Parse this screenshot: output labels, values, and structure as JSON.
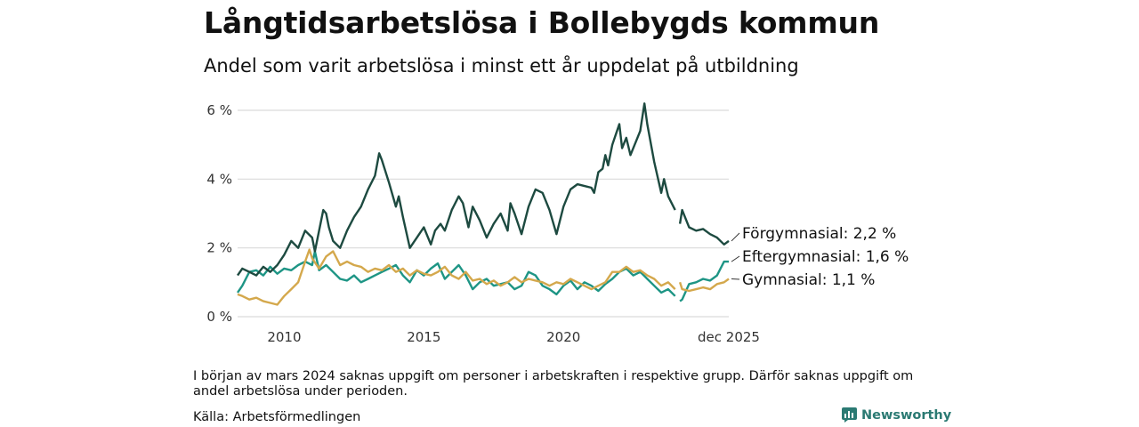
{
  "title": "Långtidsarbetslösa i Bollebygds kommun",
  "subtitle": "Andel som varit arbetslösa i minst ett år uppdelat på utbildning",
  "note": "I början av mars 2024 saknas uppgift om personer i arbetskraften i respektive grupp. Därför saknas uppgift om andel arbetslösa under perioden.",
  "source": "Källa: Arbetsförmedlingen",
  "brand": "Newsworthy",
  "colors": {
    "forgymnasial": "#1d4a40",
    "eftergymnasial": "#1e9585",
    "gymnasial": "#d4a84c",
    "grid": "#d9d9d9",
    "brand": "#2b7a73"
  },
  "chart_data": {
    "type": "line",
    "x_unit": "year",
    "x_start": 2008.33,
    "x_end": 2025.92,
    "gap": [
      2024.0,
      2024.17
    ],
    "ylim": [
      0,
      6.2
    ],
    "yticks": [
      0,
      2,
      4,
      6
    ],
    "ytick_labels": [
      "0 %",
      "2 %",
      "4 %",
      "6 %"
    ],
    "xticks": [
      2010,
      2015,
      2020,
      2025.92
    ],
    "xtick_labels": [
      "2010",
      "2015",
      "2020",
      "dec 2025"
    ],
    "grid": true,
    "series": [
      {
        "name": "Förgymnasial",
        "label": "Förgymnasial: 2,2 %",
        "color_key": "forgymnasial",
        "points": [
          [
            2008.33,
            1.2
          ],
          [
            2008.5,
            1.4
          ],
          [
            2008.75,
            1.3
          ],
          [
            2009.0,
            1.2
          ],
          [
            2009.25,
            1.45
          ],
          [
            2009.5,
            1.3
          ],
          [
            2009.75,
            1.5
          ],
          [
            2010.0,
            1.8
          ],
          [
            2010.25,
            2.2
          ],
          [
            2010.5,
            2.0
          ],
          [
            2010.75,
            2.5
          ],
          [
            2011.0,
            2.3
          ],
          [
            2011.1,
            1.9
          ],
          [
            2011.25,
            2.5
          ],
          [
            2011.4,
            3.1
          ],
          [
            2011.5,
            3.0
          ],
          [
            2011.6,
            2.6
          ],
          [
            2011.75,
            2.2
          ],
          [
            2012.0,
            2.0
          ],
          [
            2012.25,
            2.5
          ],
          [
            2012.5,
            2.9
          ],
          [
            2012.75,
            3.2
          ],
          [
            2013.0,
            3.7
          ],
          [
            2013.25,
            4.1
          ],
          [
            2013.4,
            4.75
          ],
          [
            2013.5,
            4.55
          ],
          [
            2013.75,
            3.9
          ],
          [
            2014.0,
            3.2
          ],
          [
            2014.1,
            3.5
          ],
          [
            2014.25,
            2.9
          ],
          [
            2014.5,
            2.0
          ],
          [
            2014.75,
            2.3
          ],
          [
            2015.0,
            2.6
          ],
          [
            2015.25,
            2.1
          ],
          [
            2015.4,
            2.5
          ],
          [
            2015.6,
            2.7
          ],
          [
            2015.75,
            2.5
          ],
          [
            2016.0,
            3.1
          ],
          [
            2016.25,
            3.5
          ],
          [
            2016.4,
            3.3
          ],
          [
            2016.6,
            2.6
          ],
          [
            2016.75,
            3.2
          ],
          [
            2017.0,
            2.8
          ],
          [
            2017.25,
            2.3
          ],
          [
            2017.5,
            2.7
          ],
          [
            2017.75,
            3.0
          ],
          [
            2018.0,
            2.5
          ],
          [
            2018.1,
            3.3
          ],
          [
            2018.25,
            3.0
          ],
          [
            2018.5,
            2.4
          ],
          [
            2018.75,
            3.2
          ],
          [
            2019.0,
            3.7
          ],
          [
            2019.25,
            3.6
          ],
          [
            2019.5,
            3.1
          ],
          [
            2019.75,
            2.4
          ],
          [
            2020.0,
            3.2
          ],
          [
            2020.25,
            3.7
          ],
          [
            2020.5,
            3.85
          ],
          [
            2020.75,
            3.8
          ],
          [
            2021.0,
            3.75
          ],
          [
            2021.1,
            3.6
          ],
          [
            2021.25,
            4.2
          ],
          [
            2021.4,
            4.3
          ],
          [
            2021.5,
            4.7
          ],
          [
            2021.6,
            4.4
          ],
          [
            2021.75,
            5.0
          ],
          [
            2022.0,
            5.6
          ],
          [
            2022.1,
            4.9
          ],
          [
            2022.25,
            5.2
          ],
          [
            2022.4,
            4.7
          ],
          [
            2022.6,
            5.1
          ],
          [
            2022.75,
            5.4
          ],
          [
            2022.9,
            6.2
          ],
          [
            2023.0,
            5.6
          ],
          [
            2023.25,
            4.5
          ],
          [
            2023.5,
            3.6
          ],
          [
            2023.6,
            4.0
          ],
          [
            2023.75,
            3.5
          ],
          [
            2024.0,
            3.1
          ],
          [
            2024.17,
            2.7
          ],
          [
            2024.25,
            3.1
          ],
          [
            2024.5,
            2.6
          ],
          [
            2024.75,
            2.5
          ],
          [
            2025.0,
            2.55
          ],
          [
            2025.25,
            2.4
          ],
          [
            2025.5,
            2.3
          ],
          [
            2025.75,
            2.1
          ],
          [
            2025.92,
            2.2
          ]
        ]
      },
      {
        "name": "Eftergymnasial",
        "label": "Eftergymnasial: 1,6 %",
        "color_key": "eftergymnasial",
        "points": [
          [
            2008.33,
            0.7
          ],
          [
            2008.5,
            0.9
          ],
          [
            2008.75,
            1.3
          ],
          [
            2009.0,
            1.35
          ],
          [
            2009.25,
            1.2
          ],
          [
            2009.5,
            1.45
          ],
          [
            2009.75,
            1.25
          ],
          [
            2010.0,
            1.4
          ],
          [
            2010.25,
            1.35
          ],
          [
            2010.5,
            1.5
          ],
          [
            2010.75,
            1.6
          ],
          [
            2011.0,
            1.5
          ],
          [
            2011.1,
            1.9
          ],
          [
            2011.25,
            1.35
          ],
          [
            2011.5,
            1.5
          ],
          [
            2011.75,
            1.3
          ],
          [
            2012.0,
            1.1
          ],
          [
            2012.25,
            1.05
          ],
          [
            2012.5,
            1.2
          ],
          [
            2012.75,
            1.0
          ],
          [
            2013.0,
            1.1
          ],
          [
            2013.25,
            1.2
          ],
          [
            2013.5,
            1.3
          ],
          [
            2013.75,
            1.4
          ],
          [
            2014.0,
            1.5
          ],
          [
            2014.25,
            1.2
          ],
          [
            2014.5,
            1.0
          ],
          [
            2014.75,
            1.35
          ],
          [
            2015.0,
            1.2
          ],
          [
            2015.25,
            1.4
          ],
          [
            2015.5,
            1.55
          ],
          [
            2015.75,
            1.1
          ],
          [
            2016.0,
            1.3
          ],
          [
            2016.25,
            1.5
          ],
          [
            2016.5,
            1.2
          ],
          [
            2016.75,
            0.8
          ],
          [
            2017.0,
            1.0
          ],
          [
            2017.25,
            1.1
          ],
          [
            2017.5,
            0.9
          ],
          [
            2017.75,
            0.95
          ],
          [
            2018.0,
            1.0
          ],
          [
            2018.25,
            0.8
          ],
          [
            2018.5,
            0.9
          ],
          [
            2018.75,
            1.3
          ],
          [
            2019.0,
            1.2
          ],
          [
            2019.25,
            0.9
          ],
          [
            2019.5,
            0.8
          ],
          [
            2019.75,
            0.65
          ],
          [
            2020.0,
            0.9
          ],
          [
            2020.25,
            1.05
          ],
          [
            2020.5,
            0.8
          ],
          [
            2020.75,
            1.0
          ],
          [
            2021.0,
            0.9
          ],
          [
            2021.25,
            0.75
          ],
          [
            2021.5,
            0.95
          ],
          [
            2021.75,
            1.1
          ],
          [
            2022.0,
            1.3
          ],
          [
            2022.25,
            1.4
          ],
          [
            2022.5,
            1.2
          ],
          [
            2022.75,
            1.3
          ],
          [
            2023.0,
            1.1
          ],
          [
            2023.25,
            0.9
          ],
          [
            2023.5,
            0.7
          ],
          [
            2023.75,
            0.8
          ],
          [
            2024.0,
            0.6
          ],
          [
            2024.17,
            0.45
          ],
          [
            2024.25,
            0.5
          ],
          [
            2024.5,
            0.95
          ],
          [
            2024.75,
            1.0
          ],
          [
            2025.0,
            1.1
          ],
          [
            2025.25,
            1.05
          ],
          [
            2025.5,
            1.2
          ],
          [
            2025.75,
            1.6
          ],
          [
            2025.92,
            1.6
          ]
        ]
      },
      {
        "name": "Gymnasial",
        "label": "Gymnasial: 1,1 %",
        "color_key": "gymnasial",
        "points": [
          [
            2008.33,
            0.65
          ],
          [
            2008.5,
            0.6
          ],
          [
            2008.75,
            0.5
          ],
          [
            2009.0,
            0.55
          ],
          [
            2009.25,
            0.45
          ],
          [
            2009.5,
            0.4
          ],
          [
            2009.75,
            0.35
          ],
          [
            2010.0,
            0.6
          ],
          [
            2010.25,
            0.8
          ],
          [
            2010.5,
            1.0
          ],
          [
            2010.75,
            1.6
          ],
          [
            2010.9,
            1.95
          ],
          [
            2011.0,
            1.7
          ],
          [
            2011.25,
            1.4
          ],
          [
            2011.5,
            1.75
          ],
          [
            2011.75,
            1.9
          ],
          [
            2012.0,
            1.5
          ],
          [
            2012.25,
            1.6
          ],
          [
            2012.5,
            1.5
          ],
          [
            2012.75,
            1.45
          ],
          [
            2013.0,
            1.3
          ],
          [
            2013.25,
            1.4
          ],
          [
            2013.5,
            1.35
          ],
          [
            2013.75,
            1.5
          ],
          [
            2014.0,
            1.3
          ],
          [
            2014.25,
            1.4
          ],
          [
            2014.5,
            1.2
          ],
          [
            2014.75,
            1.35
          ],
          [
            2015.0,
            1.25
          ],
          [
            2015.25,
            1.2
          ],
          [
            2015.5,
            1.3
          ],
          [
            2015.75,
            1.45
          ],
          [
            2016.0,
            1.2
          ],
          [
            2016.25,
            1.1
          ],
          [
            2016.5,
            1.3
          ],
          [
            2016.75,
            1.05
          ],
          [
            2017.0,
            1.1
          ],
          [
            2017.25,
            0.95
          ],
          [
            2017.5,
            1.05
          ],
          [
            2017.75,
            0.9
          ],
          [
            2018.0,
            1.0
          ],
          [
            2018.25,
            1.15
          ],
          [
            2018.5,
            1.0
          ],
          [
            2018.75,
            1.1
          ],
          [
            2019.0,
            1.05
          ],
          [
            2019.25,
            1.0
          ],
          [
            2019.5,
            0.9
          ],
          [
            2019.75,
            1.0
          ],
          [
            2020.0,
            0.95
          ],
          [
            2020.25,
            1.1
          ],
          [
            2020.5,
            1.0
          ],
          [
            2020.75,
            0.9
          ],
          [
            2021.0,
            0.8
          ],
          [
            2021.25,
            0.9
          ],
          [
            2021.5,
            1.0
          ],
          [
            2021.75,
            1.3
          ],
          [
            2022.0,
            1.3
          ],
          [
            2022.25,
            1.45
          ],
          [
            2022.5,
            1.3
          ],
          [
            2022.75,
            1.35
          ],
          [
            2023.0,
            1.2
          ],
          [
            2023.25,
            1.1
          ],
          [
            2023.5,
            0.9
          ],
          [
            2023.75,
            1.0
          ],
          [
            2024.0,
            0.8
          ],
          [
            2024.17,
            1.0
          ],
          [
            2024.25,
            0.8
          ],
          [
            2024.5,
            0.75
          ],
          [
            2024.75,
            0.8
          ],
          [
            2025.0,
            0.85
          ],
          [
            2025.25,
            0.8
          ],
          [
            2025.5,
            0.95
          ],
          [
            2025.75,
            1.0
          ],
          [
            2025.92,
            1.1
          ]
        ]
      }
    ]
  }
}
